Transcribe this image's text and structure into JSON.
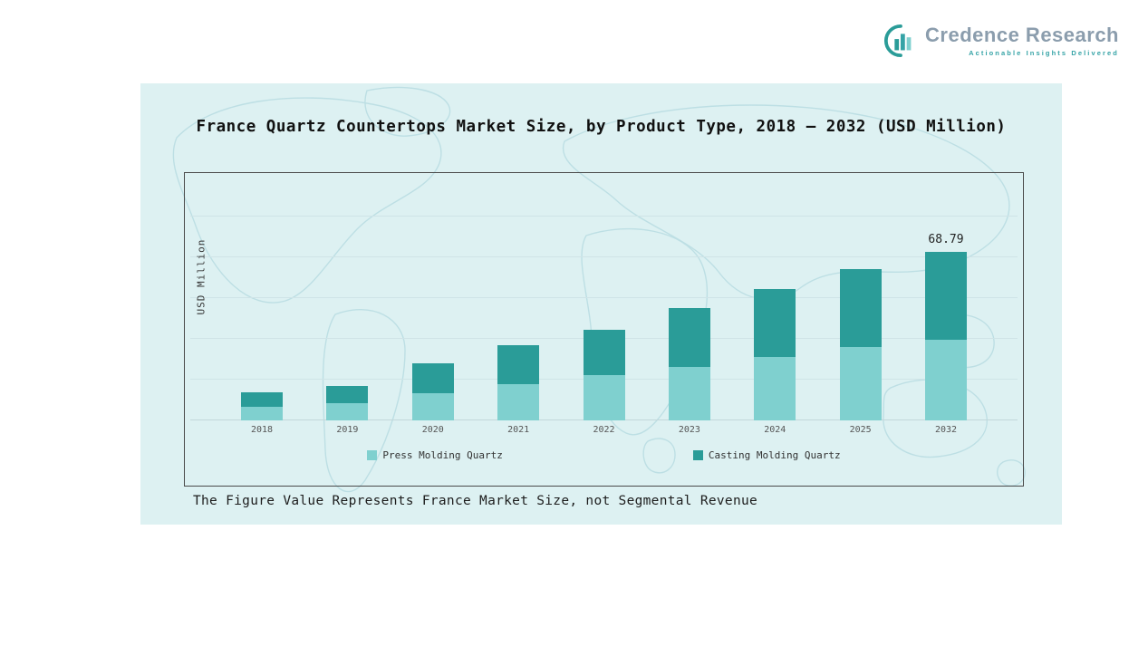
{
  "logo": {
    "name": "Credence Research",
    "tagline": "Actionable Insights Delivered",
    "accent_color": "#2a9c98",
    "text_color": "#8b9dad"
  },
  "panel": {
    "title": "France Quartz Countertops Market Size, by Product Type, 2018 – 2032 (USD Million)",
    "footnote": "The Figure Value Represents France Market Size, not Segmental Revenue",
    "background_color": "#ddf1f2"
  },
  "chart_data": {
    "type": "bar",
    "stacked": true,
    "title": "France Quartz Countertops Market Size, by Product Type, 2018 – 2032 (USD Million)",
    "xlabel": "",
    "ylabel": "USD Million",
    "ylim": [
      0,
      80
    ],
    "grid": true,
    "legend_position": "bottom",
    "categories": [
      "2018",
      "2019",
      "2020",
      "2021",
      "2022",
      "2023",
      "2024",
      "2025",
      "2032"
    ],
    "series": [
      {
        "name": "Press Molding Quartz",
        "color": "#7fd0cf",
        "values": [
          5.5,
          7.0,
          11.0,
          15.0,
          18.5,
          21.8,
          25.9,
          30.0,
          32.9
        ]
      },
      {
        "name": "Casting Molding Quartz",
        "color": "#2a9c98",
        "values": [
          6.0,
          7.0,
          12.3,
          15.7,
          18.6,
          24.1,
          27.7,
          31.8,
          35.89
        ]
      }
    ],
    "totals": [
      11.5,
      14.0,
      23.3,
      30.7,
      37.1,
      45.9,
      53.6,
      61.8,
      68.79
    ],
    "annotations": [
      {
        "category": "2032",
        "text": "68.79"
      }
    ]
  }
}
